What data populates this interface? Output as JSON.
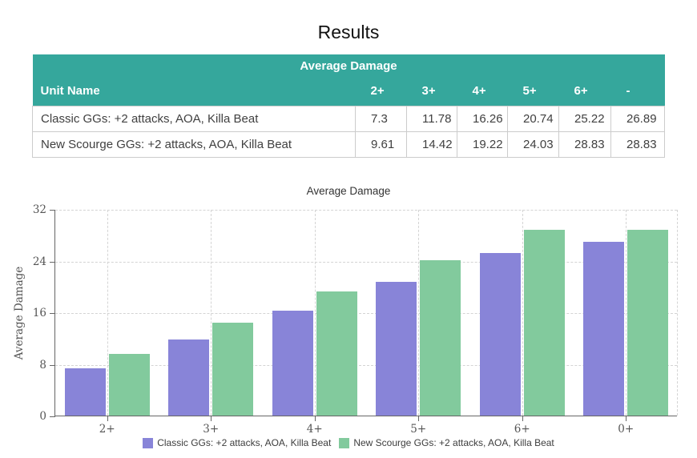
{
  "page": {
    "title": "Results"
  },
  "table": {
    "title": "Average Damage",
    "header_bg": "#35a79c",
    "header_text_color": "#ffffff",
    "columns": [
      "Unit Name",
      "2+",
      "3+",
      "4+",
      "5+",
      "6+",
      "-"
    ],
    "rows": [
      {
        "name": "Classic GGs: +2 attacks, AOA, Killa Beat",
        "values": [
          "7.3",
          "11.78",
          "16.26",
          "20.74",
          "25.22",
          "26.89"
        ]
      },
      {
        "name": "New Scourge GGs: +2 attacks, AOA, Killa Beat",
        "values": [
          "9.61",
          "14.42",
          "19.22",
          "24.03",
          "28.83",
          "28.83"
        ]
      }
    ]
  },
  "chart_data": {
    "type": "bar",
    "title": "Average Damage",
    "xlabel": "",
    "ylabel": "Average Damage",
    "categories": [
      "2+",
      "3+",
      "4+",
      "5+",
      "6+",
      "0+"
    ],
    "series": [
      {
        "name": "Classic GGs: +2 attacks, AOA, Killa Beat",
        "color": "#8884d8",
        "values": [
          7.3,
          11.78,
          16.26,
          20.74,
          25.22,
          26.89
        ]
      },
      {
        "name": "New Scourge GGs: +2 attacks, AOA, Killa Beat",
        "color": "#82ca9d",
        "values": [
          9.61,
          14.42,
          19.22,
          24.03,
          28.83,
          28.83
        ]
      }
    ],
    "ylim": [
      0,
      32
    ],
    "yticks": [
      0,
      8,
      16,
      24,
      32
    ],
    "grid": true,
    "legend_position": "bottom"
  }
}
